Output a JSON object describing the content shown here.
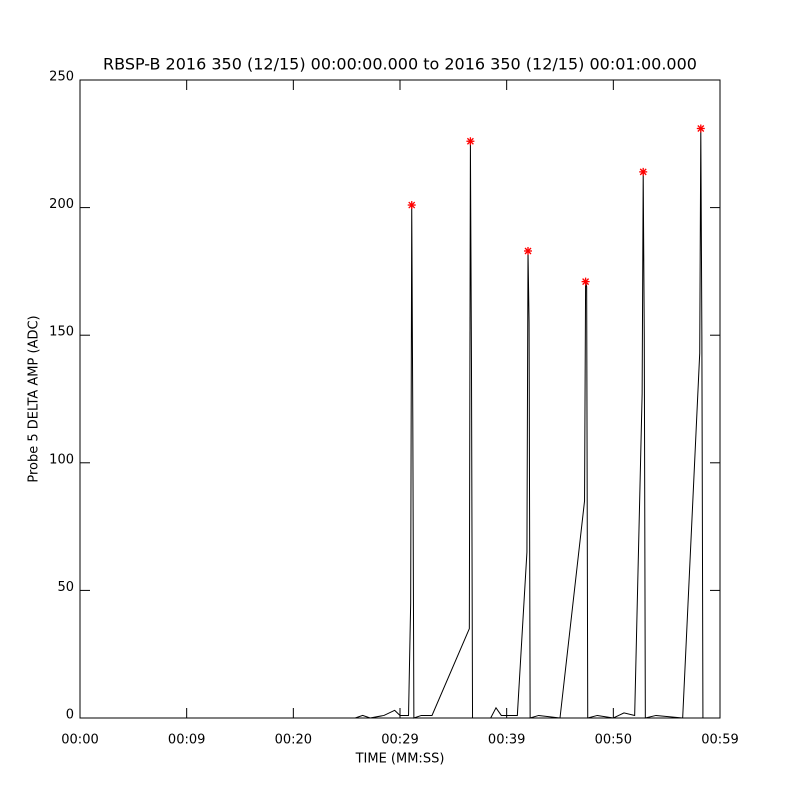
{
  "chart_data": {
    "type": "line",
    "title": "RBSP-B 2016 350 (12/15) 00:00:00.000 to 2016 350 (12/15) 00:01:00.000",
    "x_label": "TIME (MM:SS)",
    "y_label": "Probe 5 DELTA AMP (ADC)",
    "xlim": [
      0,
      60
    ],
    "xticks": [
      {
        "value": 0,
        "label": "00:00"
      },
      {
        "value": 10,
        "label": "00:09"
      },
      {
        "value": 20,
        "label": "00:20"
      },
      {
        "value": 30,
        "label": "00:29"
      },
      {
        "value": 40,
        "label": "00:39"
      },
      {
        "value": 50,
        "label": "00:50"
      },
      {
        "value": 60,
        "label": "00:59"
      }
    ],
    "ylim": [
      0,
      250
    ],
    "yticks": [
      0,
      50,
      100,
      150,
      200,
      250
    ],
    "grid": false,
    "series": [
      {
        "color": "#000000",
        "x": [
          25.8,
          26.5,
          27.2,
          28.5,
          29.5,
          30,
          30.8,
          31.0,
          31.1,
          31.2,
          31.3,
          32,
          33,
          36.5,
          36.6,
          36.7,
          36.8,
          38.5,
          39.0,
          39.5,
          41,
          41.9,
          42.0,
          42.1,
          42.2,
          43,
          45,
          47.3,
          47.4,
          47.5,
          47.6,
          48.5,
          50,
          50.5,
          51,
          52,
          52.7,
          52.8,
          52.9,
          53.0,
          54,
          56.5,
          58.1,
          58.2,
          58.3,
          58.4,
          59.5
        ],
        "values": [
          0,
          1,
          0,
          1,
          3,
          1,
          1,
          45,
          201,
          117,
          0,
          1,
          1,
          35,
          226,
          139,
          0,
          0,
          4,
          1,
          1,
          65,
          183,
          155,
          0,
          1,
          0,
          85,
          171,
          169,
          0,
          1,
          0,
          1,
          2,
          1,
          127,
          214,
          150,
          0,
          1,
          0,
          143,
          231,
          150,
          0,
          0
        ]
      },
      {
        "color": "#ff0000",
        "marker": "asterisk",
        "x": [
          31.1,
          36.6,
          42.0,
          47.4,
          52.8,
          58.2
        ],
        "values": [
          201,
          226,
          183,
          171,
          214,
          231
        ]
      }
    ]
  }
}
